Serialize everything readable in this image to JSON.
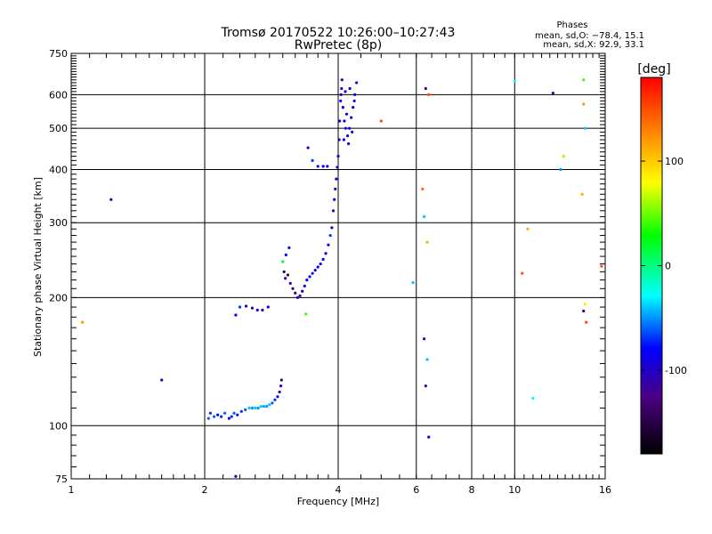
{
  "chart_data": {
    "type": "scatter",
    "title": "Tromsø 20170522 10:26:00–10:27:43",
    "subtitle": "RwPretec (8p)",
    "xlabel": "Frequency [MHz]",
    "ylabel": "Stationary phase Virtual Height [km]",
    "x_scale": "log",
    "y_scale": "log",
    "xlim": [
      1,
      16
    ],
    "ylim": [
      75,
      750
    ],
    "x_ticks": [
      1,
      2,
      4,
      6,
      8,
      10,
      16
    ],
    "y_ticks": [
      75,
      100,
      200,
      300,
      400,
      500,
      600,
      750
    ],
    "phases_legend": {
      "title": "Phases",
      "line1": "mean, sd,O: −78.4, 15.1",
      "line2": "mean, sd,X:  92.9, 33.1"
    },
    "colorbar": {
      "label": "[deg]",
      "range": [
        -180,
        180
      ],
      "ticks": [
        -100,
        0,
        100
      ]
    },
    "points": [
      [
        1.06,
        175,
        120
      ],
      [
        1.23,
        340,
        -110
      ],
      [
        1.6,
        128,
        -110
      ],
      [
        2.35,
        76,
        -100
      ],
      [
        2.04,
        104,
        -60
      ],
      [
        2.06,
        107,
        -70
      ],
      [
        2.1,
        105,
        -60
      ],
      [
        2.14,
        106,
        -80
      ],
      [
        2.18,
        105,
        -70
      ],
      [
        2.22,
        107,
        -60
      ],
      [
        2.27,
        104,
        -90
      ],
      [
        2.3,
        105,
        -70
      ],
      [
        2.33,
        107,
        -60
      ],
      [
        2.37,
        106,
        -80
      ],
      [
        2.42,
        108,
        -70
      ],
      [
        2.47,
        109,
        -60
      ],
      [
        2.52,
        110,
        -40
      ],
      [
        2.56,
        110,
        -50
      ],
      [
        2.6,
        110,
        -40
      ],
      [
        2.64,
        110,
        -50
      ],
      [
        2.68,
        111,
        -40
      ],
      [
        2.72,
        111,
        -45
      ],
      [
        2.76,
        111,
        -50
      ],
      [
        2.8,
        112,
        -40
      ],
      [
        2.84,
        113,
        -60
      ],
      [
        2.88,
        115,
        -70
      ],
      [
        2.92,
        117,
        -80
      ],
      [
        2.95,
        120,
        -90
      ],
      [
        2.97,
        124,
        -110
      ],
      [
        2.98,
        128,
        -120
      ],
      [
        2.35,
        182,
        -80
      ],
      [
        2.4,
        190,
        -70
      ],
      [
        2.48,
        191,
        -100
      ],
      [
        2.56,
        189,
        -110
      ],
      [
        2.63,
        187,
        -100
      ],
      [
        2.7,
        187,
        -100
      ],
      [
        2.78,
        190,
        -80
      ],
      [
        3.1,
        262,
        -90
      ],
      [
        3.05,
        252,
        -80
      ],
      [
        3.0,
        243,
        20
      ],
      [
        3.02,
        230,
        -150
      ],
      [
        3.04,
        222,
        -110
      ],
      [
        3.08,
        226,
        -140
      ],
      [
        3.12,
        216,
        -100
      ],
      [
        3.16,
        210,
        -120
      ],
      [
        3.2,
        205,
        -110
      ],
      [
        3.24,
        200,
        -100
      ],
      [
        3.28,
        202,
        -120
      ],
      [
        3.32,
        207,
        -90
      ],
      [
        3.36,
        213,
        -100
      ],
      [
        3.4,
        220,
        -80
      ],
      [
        3.45,
        224,
        -90
      ],
      [
        3.5,
        228,
        -80
      ],
      [
        3.55,
        232,
        -90
      ],
      [
        3.6,
        236,
        -80
      ],
      [
        3.65,
        240,
        -90
      ],
      [
        3.7,
        246,
        -80
      ],
      [
        3.75,
        254,
        -90
      ],
      [
        3.8,
        266,
        -80
      ],
      [
        3.84,
        280,
        -70
      ],
      [
        3.87,
        292,
        -80
      ],
      [
        3.38,
        183,
        40
      ],
      [
        3.42,
        450,
        -80
      ],
      [
        3.5,
        420,
        -70
      ],
      [
        3.6,
        407,
        -90
      ],
      [
        3.7,
        407,
        -80
      ],
      [
        3.78,
        407,
        -90
      ],
      [
        3.9,
        320,
        -100
      ],
      [
        3.92,
        340,
        -90
      ],
      [
        3.94,
        360,
        -100
      ],
      [
        3.96,
        380,
        -90
      ],
      [
        3.98,
        405,
        -100
      ],
      [
        4.0,
        430,
        -90
      ],
      [
        4.02,
        470,
        -100
      ],
      [
        4.03,
        520,
        -90
      ],
      [
        4.05,
        580,
        -80
      ],
      [
        4.07,
        620,
        -100
      ],
      [
        4.1,
        560,
        -90
      ],
      [
        4.13,
        520,
        -80
      ],
      [
        4.16,
        500,
        -100
      ],
      [
        4.2,
        480,
        -90
      ],
      [
        4.24,
        500,
        -80
      ],
      [
        4.28,
        530,
        -100
      ],
      [
        4.32,
        560,
        -90
      ],
      [
        4.36,
        600,
        -80
      ],
      [
        4.4,
        640,
        -100
      ],
      [
        4.08,
        650,
        -90
      ],
      [
        4.15,
        610,
        -100
      ],
      [
        4.25,
        620,
        -80
      ],
      [
        4.35,
        580,
        -100
      ],
      [
        4.22,
        460,
        -90
      ],
      [
        4.12,
        470,
        -80
      ],
      [
        4.3,
        490,
        -100
      ],
      [
        4.18,
        540,
        -90
      ],
      [
        4.06,
        600,
        -100
      ],
      [
        5.0,
        520,
        150
      ],
      [
        5.9,
        217,
        -40
      ],
      [
        6.2,
        360,
        140
      ],
      [
        6.25,
        310,
        -40
      ],
      [
        6.35,
        270,
        110
      ],
      [
        6.3,
        620,
        -130
      ],
      [
        6.4,
        600,
        150
      ],
      [
        6.25,
        160,
        -100
      ],
      [
        6.35,
        143,
        -40
      ],
      [
        6.3,
        124,
        -120
      ],
      [
        6.4,
        94,
        -90
      ],
      [
        10.0,
        645,
        -30
      ],
      [
        10.4,
        228,
        150
      ],
      [
        10.7,
        290,
        110
      ],
      [
        11.0,
        116,
        -30
      ],
      [
        12.2,
        605,
        -110
      ],
      [
        12.7,
        400,
        -50
      ],
      [
        12.9,
        430,
        60
      ],
      [
        14.3,
        650,
        40
      ],
      [
        14.3,
        570,
        120
      ],
      [
        14.4,
        500,
        -40
      ],
      [
        14.2,
        350,
        110
      ],
      [
        14.4,
        193,
        90
      ],
      [
        14.3,
        186,
        -140
      ],
      [
        14.5,
        175,
        150
      ],
      [
        15.7,
        237,
        150
      ]
    ]
  }
}
